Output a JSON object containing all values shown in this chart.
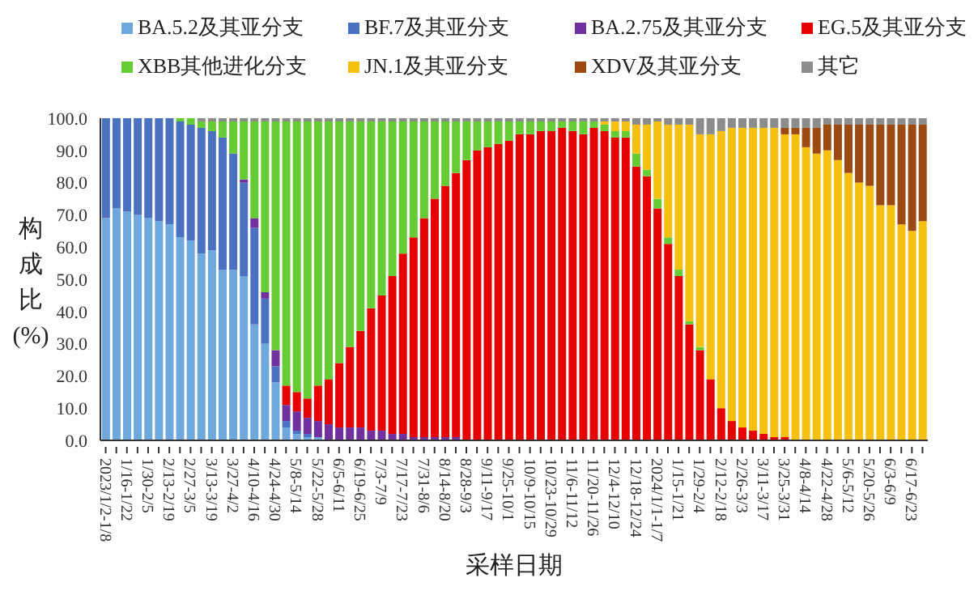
{
  "chart_data": {
    "type": "bar",
    "stacked": true,
    "xlabel": "采样日期",
    "ylabel": "构成比(%)",
    "legend": "top",
    "categories": [
      "2023/1/2-1/8",
      null,
      "1/16-1/22",
      null,
      "1/30-2/5",
      null,
      "2/13-2/19",
      null,
      "2/27-3/5",
      null,
      "3/13-3/19",
      null,
      "3/27-4/2",
      null,
      "4/10-4/16",
      null,
      "4/24-4/30",
      null,
      "5/8-5/14",
      null,
      "5/22-5/28",
      null,
      "6/5-6/11",
      null,
      "6/19-6/25",
      null,
      "7/3-7/9",
      null,
      "7/17-7/23",
      null,
      "7/31-8/6",
      null,
      "8/14-8/20",
      null,
      "8/28-9/3",
      null,
      "9/11-9/17",
      null,
      "9/25-10/1",
      null,
      "10/9-10/15",
      null,
      "10/23-10/29",
      null,
      "11/6-11/12",
      null,
      "11/20-11/26",
      null,
      "12/4-12/10",
      null,
      "12/18-12/24",
      null,
      "2024/1/1-1/7",
      null,
      "1/15-1/21",
      null,
      "1/29-2/4",
      null,
      "2/12-2/18",
      null,
      "2/26-3/3",
      null,
      "3/11-3/17",
      null,
      "3/25-3/31",
      null,
      "4/8-4/14",
      null,
      "4/22-4/28",
      null,
      "5/6-5/12",
      null,
      "5/20-5/26",
      null,
      "6/3-6/9",
      null,
      "6/17-6/23",
      null
    ],
    "ylim": [
      0,
      100
    ],
    "yticks": [
      {
        "value": 0,
        "label": "0.0"
      },
      {
        "value": 10,
        "label": "10.0"
      },
      {
        "value": 20,
        "label": "20.0"
      },
      {
        "value": 30,
        "label": "30.0"
      },
      {
        "value": 40,
        "label": "40.0"
      },
      {
        "value": 50,
        "label": "50.0"
      },
      {
        "value": 60,
        "label": "60.0"
      },
      {
        "value": 70,
        "label": "70.0"
      },
      {
        "value": 80,
        "label": "80.0"
      },
      {
        "value": 90,
        "label": "90.0"
      },
      {
        "value": 100,
        "label": "100.0"
      }
    ],
    "series": [
      {
        "name": "BA.5.2及其亚分支",
        "color": "#6fa8dc",
        "values": [
          69,
          72,
          71,
          70,
          69,
          68,
          67,
          63,
          62,
          58,
          59,
          53,
          53,
          51,
          36,
          30,
          18,
          4,
          2,
          1,
          1,
          0,
          0,
          0,
          0,
          0,
          0,
          0,
          0,
          0,
          0,
          0,
          0,
          0,
          0,
          0,
          0,
          0,
          0,
          0,
          0,
          0,
          0,
          0,
          0,
          0,
          0,
          0,
          0,
          0,
          0,
          0,
          0,
          0,
          0,
          0,
          0,
          0,
          0,
          0,
          0,
          0,
          0,
          0,
          0,
          0,
          0,
          0,
          0,
          0,
          0,
          0,
          0,
          0,
          0,
          0,
          0,
          0
        ]
      },
      {
        "name": "BF.7及其亚分支",
        "color": "#4a72c0",
        "values": [
          31,
          28,
          29,
          30,
          31,
          32,
          33,
          36,
          36,
          39,
          37,
          41,
          36,
          29,
          30,
          14,
          5,
          2,
          1,
          1,
          0,
          0,
          0,
          0,
          0,
          0,
          0,
          0,
          0,
          0,
          0,
          0,
          0,
          0,
          0,
          0,
          0,
          0,
          0,
          0,
          0,
          0,
          0,
          0,
          0,
          0,
          0,
          0,
          0,
          0,
          0,
          0,
          0,
          0,
          0,
          0,
          0,
          0,
          0,
          0,
          0,
          0,
          0,
          0,
          0,
          0,
          0,
          0,
          0,
          0,
          0,
          0,
          0,
          0,
          0,
          0,
          0,
          0
        ]
      },
      {
        "name": "BA.2.75及其亚分支",
        "color": "#7030a0",
        "values": [
          0,
          0,
          0,
          0,
          0,
          0,
          0,
          0,
          0,
          0,
          0,
          0,
          0,
          1,
          3,
          2,
          5,
          5,
          6,
          5,
          5,
          5,
          4,
          4,
          4,
          3,
          3,
          2,
          2,
          1,
          1,
          1,
          1,
          1,
          0,
          0,
          0,
          0,
          0,
          0,
          0,
          0,
          0,
          0,
          0,
          0,
          0,
          0,
          0,
          0,
          0,
          0,
          0,
          0,
          0,
          0,
          0,
          0,
          0,
          0,
          0,
          0,
          0,
          0,
          0,
          0,
          0,
          0,
          0,
          0,
          0,
          0,
          0,
          0,
          0,
          0,
          0,
          0
        ]
      },
      {
        "name": "EG.5及其亚分支",
        "color": "#e60000",
        "values": [
          0,
          0,
          0,
          0,
          0,
          0,
          0,
          0,
          0,
          0,
          0,
          0,
          0,
          0,
          0,
          0,
          0,
          6,
          6,
          6,
          11,
          14,
          20,
          25,
          30,
          38,
          42,
          49,
          56,
          62,
          68,
          74,
          78,
          82,
          87,
          90,
          91,
          92,
          93,
          95,
          95,
          96,
          96,
          97,
          96,
          95,
          97,
          96,
          94,
          94,
          85,
          82,
          72,
          61,
          51,
          36,
          28,
          19,
          10,
          6,
          4,
          3,
          2,
          1,
          1,
          0,
          0,
          0,
          0,
          0,
          0,
          0,
          0,
          0,
          0,
          0,
          0,
          0
        ]
      },
      {
        "name": "XBB其他进化分支",
        "color": "#66cc33",
        "values": [
          0,
          0,
          0,
          0,
          0,
          0,
          0,
          1,
          2,
          2,
          3,
          5,
          10,
          18,
          30,
          53,
          71,
          82,
          84,
          86,
          82,
          80,
          75,
          70,
          65,
          58,
          54,
          48,
          41,
          36,
          30,
          24,
          20,
          16,
          12,
          9,
          8,
          7,
          6,
          4,
          4,
          3,
          3,
          2,
          3,
          4,
          2,
          2,
          2,
          2,
          4,
          2,
          3,
          2,
          2,
          1,
          1,
          0,
          0,
          0,
          0,
          0,
          0,
          0,
          0,
          0,
          0,
          0,
          0,
          0,
          0,
          0,
          0,
          0,
          0,
          0,
          0,
          0
        ]
      },
      {
        "name": "JN.1及其亚分支",
        "color": "#f5c010",
        "values": [
          0,
          0,
          0,
          0,
          0,
          0,
          0,
          0,
          0,
          0,
          0,
          0,
          0,
          0,
          0,
          0,
          0,
          0,
          0,
          0,
          0,
          0,
          0,
          0,
          0,
          0,
          0,
          0,
          0,
          0,
          0,
          0,
          0,
          0,
          0,
          0,
          0,
          0,
          0,
          0,
          0,
          0,
          0,
          0,
          0,
          0,
          0,
          1,
          3,
          3,
          9,
          14,
          24,
          35,
          45,
          61,
          66,
          76,
          86,
          91,
          93,
          94,
          95,
          96,
          94,
          95,
          91,
          89,
          90,
          87,
          83,
          80,
          79,
          73,
          73,
          67,
          65,
          68
        ]
      },
      {
        "name": "XDV及其亚分支",
        "color": "#9c4a12",
        "values": [
          0,
          0,
          0,
          0,
          0,
          0,
          0,
          0,
          0,
          0,
          0,
          0,
          0,
          0,
          0,
          0,
          0,
          0,
          0,
          0,
          0,
          0,
          0,
          0,
          0,
          0,
          0,
          0,
          0,
          0,
          0,
          0,
          0,
          0,
          0,
          0,
          0,
          0,
          0,
          0,
          0,
          0,
          0,
          0,
          0,
          0,
          0,
          0,
          0,
          0,
          0,
          0,
          0,
          0,
          0,
          0,
          0,
          0,
          0,
          0,
          0,
          0,
          0,
          0,
          2,
          2,
          6,
          8,
          8,
          11,
          15,
          18,
          19,
          25,
          25,
          31,
          33,
          30
        ]
      },
      {
        "name": "其它",
        "color": "#8c8c8c",
        "values": [
          0,
          0,
          0,
          0,
          0,
          0,
          0,
          0,
          0,
          1,
          1,
          1,
          1,
          1,
          1,
          1,
          1,
          1,
          1,
          1,
          1,
          1,
          1,
          1,
          1,
          1,
          1,
          1,
          1,
          1,
          1,
          1,
          1,
          1,
          1,
          1,
          1,
          1,
          1,
          1,
          1,
          1,
          1,
          1,
          1,
          1,
          1,
          1,
          1,
          1,
          2,
          2,
          1,
          2,
          2,
          2,
          5,
          5,
          4,
          3,
          3,
          3,
          3,
          3,
          3,
          3,
          3,
          3,
          2,
          2,
          2,
          2,
          2,
          2,
          2,
          2,
          2,
          2
        ]
      }
    ]
  }
}
